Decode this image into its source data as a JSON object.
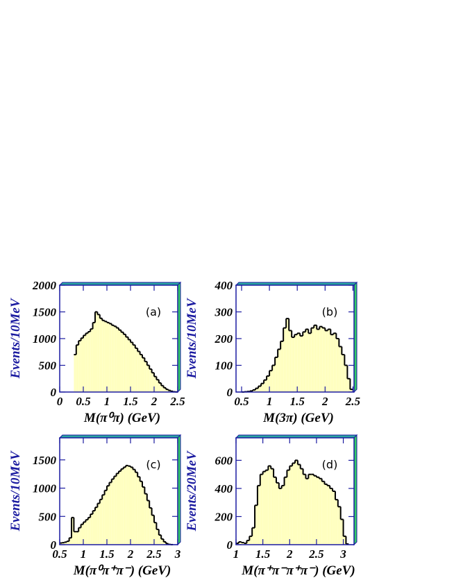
{
  "chart_data": [
    {
      "type": "histogram",
      "annotation": "(a)",
      "x_label": "M(π⁰π)  (GeV)",
      "y_label": "Events/10MeV",
      "color": "#ffffc0",
      "bins": [
        0.3,
        0.35,
        0.4,
        0.45,
        0.5,
        0.55,
        0.6,
        0.65,
        0.7,
        0.75,
        0.8,
        0.85,
        0.9,
        0.95,
        1.0,
        1.05,
        1.1,
        1.15,
        1.2,
        1.25,
        1.3,
        1.35,
        1.4,
        1.45,
        1.5,
        1.55,
        1.6,
        1.65,
        1.7,
        1.75,
        1.8,
        1.85,
        1.9,
        1.95,
        2.0,
        2.05,
        2.1,
        2.15,
        2.2,
        2.25,
        2.3,
        2.35,
        2.4,
        2.45,
        2.5
      ],
      "values": [
        700,
        880,
        960,
        1010,
        1060,
        1100,
        1130,
        1180,
        1300,
        1500,
        1450,
        1380,
        1340,
        1320,
        1300,
        1280,
        1250,
        1230,
        1200,
        1160,
        1120,
        1080,
        1030,
        980,
        930,
        880,
        820,
        760,
        700,
        640,
        570,
        500,
        430,
        360,
        290,
        230,
        170,
        120,
        80,
        50,
        30,
        15,
        5,
        2
      ],
      "xlim": [
        0,
        2.5
      ],
      "xticks": [
        0,
        0.5,
        1,
        1.5,
        2,
        2.5
      ],
      "ylim": [
        0,
        2000
      ],
      "yticks": [
        0,
        500,
        1000,
        1500,
        2000
      ]
    },
    {
      "type": "histogram",
      "annotation": "(b)",
      "x_label": "M(3π)  (GeV)",
      "y_label": "Events/10MeV",
      "color": "#ffffc0",
      "bins": [
        0.5,
        0.55,
        0.6,
        0.65,
        0.7,
        0.75,
        0.8,
        0.85,
        0.9,
        0.95,
        1.0,
        1.05,
        1.1,
        1.15,
        1.2,
        1.25,
        1.3,
        1.35,
        1.4,
        1.45,
        1.5,
        1.55,
        1.6,
        1.65,
        1.7,
        1.75,
        1.8,
        1.85,
        1.9,
        1.95,
        2.0,
        2.05,
        2.1,
        2.15,
        2.2,
        2.25,
        2.3,
        2.35,
        2.4,
        2.45,
        2.5
      ],
      "values": [
        0,
        1,
        2,
        4,
        8,
        14,
        22,
        32,
        45,
        60,
        80,
        100,
        130,
        160,
        190,
        240,
        275,
        230,
        205,
        215,
        220,
        210,
        225,
        235,
        220,
        240,
        250,
        235,
        245,
        240,
        230,
        235,
        215,
        220,
        200,
        170,
        140,
        100,
        50,
        10
      ],
      "xlim": [
        0.4,
        2.52
      ],
      "xticks": [
        0.5,
        1,
        1.5,
        2,
        2.5
      ],
      "ylim": [
        0,
        400
      ],
      "yticks": [
        0,
        100,
        200,
        300,
        400
      ]
    },
    {
      "type": "histogram",
      "annotation": "(c)",
      "x_label": "M(π⁰π⁺π⁻)  (GeV)",
      "y_label": "Events/10MeV",
      "color": "#ffffc0",
      "bins": [
        0.5,
        0.55,
        0.6,
        0.65,
        0.7,
        0.75,
        0.8,
        0.85,
        0.9,
        0.95,
        1.0,
        1.05,
        1.1,
        1.15,
        1.2,
        1.25,
        1.3,
        1.35,
        1.4,
        1.45,
        1.5,
        1.55,
        1.6,
        1.65,
        1.7,
        1.75,
        1.8,
        1.85,
        1.9,
        1.95,
        2.0,
        2.05,
        2.1,
        2.15,
        2.2,
        2.25,
        2.3,
        2.35,
        2.4,
        2.45,
        2.5,
        2.55,
        2.6,
        2.65,
        2.7,
        2.75,
        2.8,
        2.85,
        2.9
      ],
      "values": [
        30,
        35,
        45,
        60,
        120,
        480,
        230,
        230,
        300,
        360,
        400,
        440,
        480,
        540,
        600,
        660,
        730,
        800,
        880,
        960,
        1040,
        1100,
        1160,
        1210,
        1260,
        1300,
        1340,
        1370,
        1400,
        1390,
        1370,
        1330,
        1280,
        1200,
        1120,
        1020,
        900,
        780,
        650,
        520,
        390,
        270,
        170,
        100,
        50,
        20,
        5,
        1
      ],
      "xlim": [
        0.5,
        3
      ],
      "xticks": [
        0.5,
        1,
        1.5,
        2,
        2.5,
        3
      ],
      "ylim": [
        0,
        1890
      ],
      "yticks": [
        0,
        500,
        1000,
        1500
      ]
    },
    {
      "type": "histogram",
      "annotation": "(d)",
      "x_label": "M(π⁺π⁻π⁺π⁻) (GeV)",
      "y_label": "Events/20MeV",
      "color": "#ffffc0",
      "bins": [
        1.0,
        1.05,
        1.1,
        1.15,
        1.2,
        1.25,
        1.3,
        1.35,
        1.4,
        1.45,
        1.5,
        1.55,
        1.6,
        1.65,
        1.7,
        1.75,
        1.8,
        1.85,
        1.9,
        1.95,
        2.0,
        2.05,
        2.1,
        2.15,
        2.2,
        2.25,
        2.3,
        2.35,
        2.4,
        2.45,
        2.5,
        2.55,
        2.6,
        2.65,
        2.7,
        2.75,
        2.8,
        2.85,
        2.9,
        2.95,
        3.0,
        3.05,
        3.1
      ],
      "values": [
        10,
        20,
        15,
        10,
        30,
        60,
        120,
        280,
        420,
        500,
        520,
        530,
        560,
        540,
        480,
        440,
        400,
        420,
        480,
        530,
        560,
        580,
        600,
        570,
        540,
        500,
        470,
        500,
        500,
        490,
        480,
        470,
        450,
        430,
        420,
        400,
        380,
        320,
        270,
        180,
        60,
        5
      ],
      "xlim": [
        1,
        3.2
      ],
      "xticks": [
        1,
        1.5,
        2,
        2.5,
        3
      ],
      "ylim": [
        0,
        760
      ],
      "yticks": [
        0,
        200,
        400,
        600
      ]
    }
  ]
}
